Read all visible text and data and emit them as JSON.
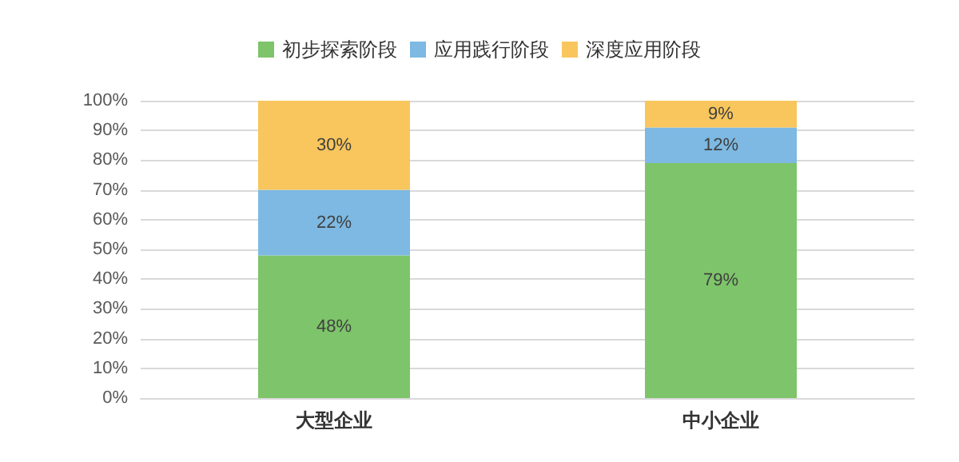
{
  "chart_data": {
    "type": "bar",
    "stacked": true,
    "categories": [
      "大型企业",
      "中小企业"
    ],
    "series": [
      {
        "name": "初步探索阶段",
        "color": "#7dc46a",
        "values": [
          48,
          79
        ],
        "value_labels": [
          "48%",
          "79%"
        ]
      },
      {
        "name": "应用践行阶段",
        "color": "#7db9e2",
        "values": [
          22,
          12
        ],
        "value_labels": [
          "22%",
          "12%"
        ]
      },
      {
        "name": "深度应用阶段",
        "color": "#f8c65c",
        "values": [
          30,
          9
        ],
        "value_labels": [
          "30%",
          "9%"
        ]
      }
    ],
    "ylim": [
      0,
      100
    ],
    "yticks": [
      {
        "value": 0,
        "label": "0%"
      },
      {
        "value": 10,
        "label": "10%"
      },
      {
        "value": 20,
        "label": "20%"
      },
      {
        "value": 30,
        "label": "30%"
      },
      {
        "value": 40,
        "label": "40%"
      },
      {
        "value": 50,
        "label": "50%"
      },
      {
        "value": 60,
        "label": "60%"
      },
      {
        "value": 70,
        "label": "70%"
      },
      {
        "value": 80,
        "label": "80%"
      },
      {
        "value": 90,
        "label": "90%"
      },
      {
        "value": 100,
        "label": "100%"
      }
    ],
    "grid": "y",
    "legend": "top"
  }
}
